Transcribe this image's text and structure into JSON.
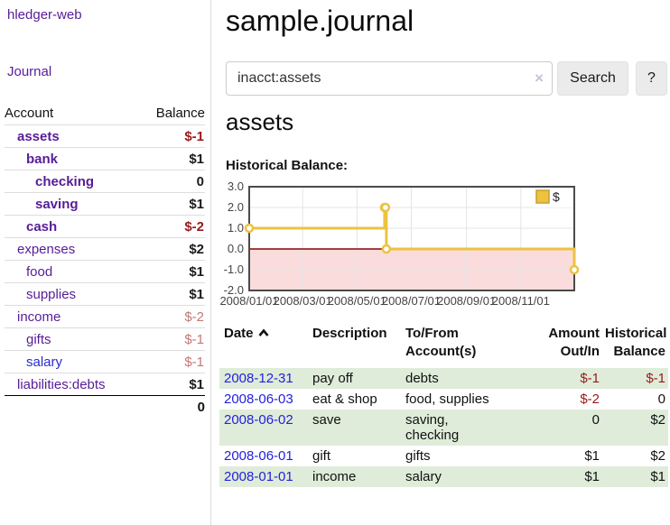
{
  "sidebar": {
    "app_link": "hledger-web",
    "journal_link": "Journal",
    "accounts_table": {
      "account_header": "Account",
      "balance_header": "Balance",
      "rows": [
        {
          "name": "assets",
          "indent": 0,
          "bold": true,
          "balance": "$-1",
          "balance_style": "neg-bold"
        },
        {
          "name": "bank",
          "indent": 1,
          "bold": true,
          "balance": "$1",
          "balance_style": "pos"
        },
        {
          "name": "checking",
          "indent": 2,
          "bold": true,
          "balance": "0",
          "balance_style": "pos"
        },
        {
          "name": "saving",
          "indent": 2,
          "bold": true,
          "balance": "$1",
          "balance_style": "pos"
        },
        {
          "name": "cash",
          "indent": 1,
          "bold": true,
          "balance": "$-2",
          "balance_style": "neg-bold"
        },
        {
          "name": "expenses",
          "indent": 0,
          "bold": false,
          "balance": "$2",
          "balance_style": "pos"
        },
        {
          "name": "food",
          "indent": 1,
          "bold": false,
          "balance": "$1",
          "balance_style": "pos"
        },
        {
          "name": "supplies",
          "indent": 1,
          "bold": false,
          "balance": "$1",
          "balance_style": "pos"
        },
        {
          "name": "income",
          "indent": 0,
          "bold": false,
          "balance": "$-2",
          "balance_style": "neg-faded"
        },
        {
          "name": "gifts",
          "indent": 1,
          "bold": false,
          "balance": "$-1",
          "balance_style": "neg-faded"
        },
        {
          "name": "salary",
          "indent": 1,
          "bold": false,
          "link_color": "blue",
          "balance": "$-1",
          "balance_style": "neg-faded"
        },
        {
          "name": "liabilities:debts",
          "indent": 0,
          "bold": false,
          "balance": "$1",
          "balance_style": "pos"
        }
      ],
      "total": "0"
    }
  },
  "header": {
    "title": "sample.journal"
  },
  "search": {
    "value": "inacct:assets",
    "clear_icon": "×",
    "search_label": "Search",
    "help_label": "?"
  },
  "account_page": {
    "heading": "assets",
    "chart_label": "Historical Balance:"
  },
  "chart_data": {
    "type": "line",
    "step": true,
    "title": "Historical Balance:",
    "series": [
      {
        "name": "$",
        "color": "#EDC240",
        "points": [
          [
            "2008-01-01",
            1
          ],
          [
            "2008-06-01",
            2
          ],
          [
            "2008-06-02",
            2
          ],
          [
            "2008-06-03",
            0
          ],
          [
            "2008-12-31",
            -1
          ]
        ]
      }
    ],
    "x_range": [
      "2008-01-01",
      "2008-12-31"
    ],
    "x_ticks": [
      "2008/01/01",
      "2008/03/01",
      "2008/05/01",
      "2008/07/01",
      "2008/09/01",
      "2008/11/01"
    ],
    "ylim": [
      -2,
      3
    ],
    "y_ticks": [
      3.0,
      2.0,
      1.0,
      0.0,
      -1.0,
      -2.0
    ],
    "grid": true,
    "legend_position": "top-right",
    "negative_region_color": "#fadcdc",
    "zero_line_color": "#8b0000",
    "border_color": "#4a4a4a",
    "grid_color": "#e4e4e4"
  },
  "register": {
    "columns": [
      {
        "label": "Date",
        "sortable": true,
        "sort": "ascending"
      },
      {
        "label": "Description"
      },
      {
        "label": "To/From Account(s)"
      },
      {
        "label": "Amount Out/In"
      },
      {
        "label": "Historical Balance"
      }
    ],
    "rows": [
      {
        "date": "2008-12-31",
        "description": "pay off",
        "accounts": "debts",
        "amount": "$-1",
        "amount_neg": true,
        "balance": "$-1",
        "balance_neg": true,
        "shade": true
      },
      {
        "date": "2008-06-03",
        "description": "eat & shop",
        "accounts": "food, supplies",
        "amount": "$-2",
        "amount_neg": true,
        "balance": "0",
        "balance_neg": false,
        "shade": false
      },
      {
        "date": "2008-06-02",
        "description": "save",
        "accounts": "saving, checking",
        "amount": "0",
        "amount_neg": false,
        "balance": "$2",
        "balance_neg": false,
        "shade": true
      },
      {
        "date": "2008-06-01",
        "description": "gift",
        "accounts": "gifts",
        "amount": "$1",
        "amount_neg": false,
        "balance": "$2",
        "balance_neg": false,
        "shade": false
      },
      {
        "date": "2008-01-01",
        "description": "income",
        "accounts": "salary",
        "amount": "$1",
        "amount_neg": false,
        "balance": "$1",
        "balance_neg": false,
        "shade": true
      }
    ]
  },
  "colors": {
    "link_purple": "#571c97",
    "link_blue": "#2222dd",
    "negative_red": "#9a1919",
    "negative_faded": "#c47777",
    "row_green": "#dfecda",
    "chart_line_gold": "#EDC240"
  }
}
